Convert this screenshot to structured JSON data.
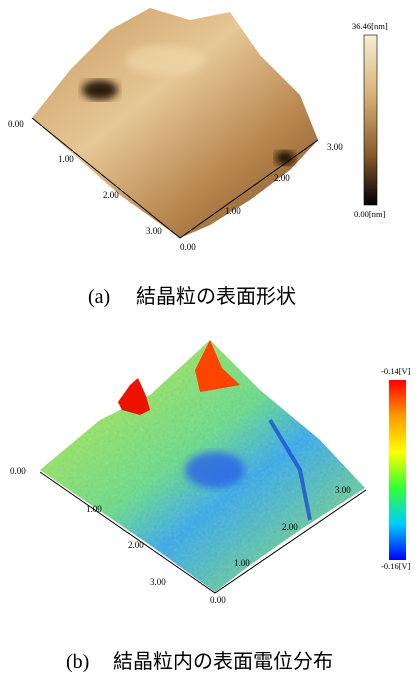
{
  "panels": [
    {
      "label": "(a)",
      "caption": "結晶粒の表面形状",
      "left_axis_ticks": [
        "0.00",
        "1.00",
        "2.00",
        "3.00"
      ],
      "origin_tick": "0.00",
      "right_axis_ticks": [
        "1.00",
        "2.00",
        "3.00"
      ],
      "colorbar": {
        "max": "36.46[nm]",
        "min": "0.00[nm]"
      }
    },
    {
      "label": "(b)",
      "caption": "結晶粒内の表面電位分布",
      "left_axis_ticks": [
        "0.00",
        "1.00",
        "2.00",
        "3.00"
      ],
      "origin_tick": "0.00",
      "right_axis_ticks": [
        "1.00",
        "2.00",
        "3.00"
      ],
      "colorbar": {
        "max": "-0.14[V]",
        "min": "-0.16[V]"
      }
    }
  ]
}
